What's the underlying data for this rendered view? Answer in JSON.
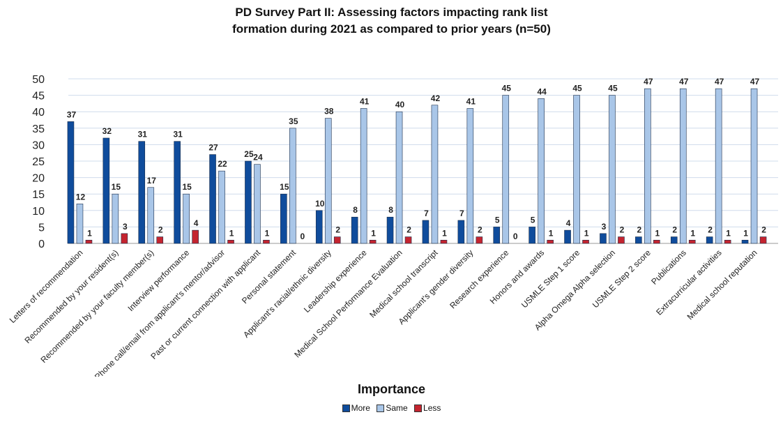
{
  "chart_data": {
    "type": "bar",
    "title_lines": [
      "PD Survey Part II: Assessing factors impacting rank list",
      "formation during 2021 as compared to prior years (n=50)"
    ],
    "legend_title": "Importance",
    "legend_placement": "bottom-center",
    "ylim": [
      0,
      50
    ],
    "yticks": [
      0,
      5,
      10,
      15,
      20,
      25,
      30,
      35,
      40,
      45,
      50
    ],
    "grid": true,
    "categories": [
      "Letters of recommendation",
      "Recommended by your resident(s)",
      "Recommended by your faculty member(s)",
      "Interview performance",
      "Phone call/email from applicant's mentor/advisor",
      "Past or current connection with applicant",
      "Personal statement",
      "Applicant's racial/ethnic diversity",
      "Leadership experience",
      "Medical School Performance Evaluation",
      "Medical school transcript",
      "Applicant's gender diversity",
      "Research experience",
      "Honors and awards",
      "USMLE Step 1 score",
      "Alpha Omega Alpha selection",
      "USMLE Step 2 score",
      "Publications",
      "Extracurricular activities",
      "Medical school reputation"
    ],
    "series": [
      {
        "name": "More",
        "color": "#0f4c9c",
        "values": [
          37,
          32,
          31,
          31,
          27,
          25,
          15,
          10,
          8,
          8,
          7,
          7,
          5,
          5,
          4,
          3,
          2,
          2,
          2,
          1
        ]
      },
      {
        "name": "Same",
        "color": "#a9c6e8",
        "values": [
          12,
          15,
          17,
          15,
          22,
          24,
          35,
          38,
          41,
          40,
          42,
          41,
          45,
          44,
          45,
          45,
          47,
          47,
          47,
          47
        ]
      },
      {
        "name": "Less",
        "color": "#c4242f",
        "values": [
          1,
          3,
          2,
          4,
          1,
          1,
          0,
          2,
          1,
          2,
          1,
          2,
          0,
          1,
          1,
          2,
          1,
          1,
          1,
          2
        ]
      }
    ]
  }
}
